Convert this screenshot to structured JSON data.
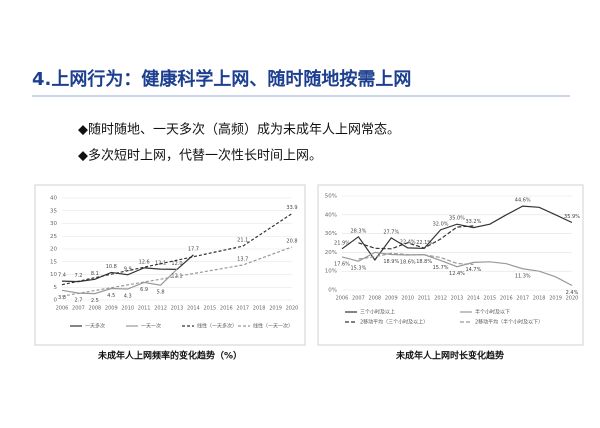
{
  "slide": {
    "title": "4.上网行为：健康科学上网、随时随地按需上网",
    "bullets": [
      "◆随时随地、一天多次（高频）成为未成年人上网常态。",
      "◆多次短时上网，代替一次性长时间上网。"
    ]
  },
  "chart_data": [
    {
      "type": "line",
      "caption": "未成年人上网频率的变化趋势（%）",
      "categories": [
        "2006",
        "2007",
        "2008",
        "2009",
        "2010",
        "2011",
        "2012",
        "2013",
        "2014",
        "2015",
        "2016",
        "2017",
        "2018",
        "2019",
        "2020"
      ],
      "ylim": [
        0,
        40
      ],
      "yticks": [
        0,
        5,
        10,
        15,
        20,
        25,
        30,
        35,
        40
      ],
      "grid": true,
      "series": [
        {
          "name": "一天多次",
          "color": "#333333",
          "dash": "none",
          "values": [
            7.4,
            7.2,
            8.1,
            10.8,
            9.9,
            12.6,
            12.1,
            12.0,
            17.7,
            null,
            null,
            null,
            null,
            null,
            null
          ],
          "value_labels": [
            "7.4",
            "7.2",
            "8.1",
            "10.8",
            "9.9",
            "12.6",
            "12.1",
            "12.0",
            "17.7",
            null,
            null,
            null,
            null,
            null,
            null
          ]
        },
        {
          "name": "一天一次",
          "color": "#999999",
          "dash": "none",
          "values": [
            3.8,
            2.7,
            2.5,
            4.5,
            4.3,
            6.9,
            5.8,
            12.1,
            null,
            null,
            null,
            null,
            null,
            null,
            null
          ],
          "value_labels": [
            "3.8",
            "2.7",
            "2.5",
            "4.5",
            "4.3",
            "6.9",
            "5.8",
            "12.1",
            null,
            null,
            null,
            null,
            null,
            null,
            null
          ]
        },
        {
          "name": "线性（一天多次）",
          "color": "#333333",
          "dash": "3,2",
          "values": [
            6.0,
            null,
            null,
            null,
            null,
            null,
            null,
            null,
            null,
            null,
            null,
            21.1,
            null,
            null,
            33.9
          ],
          "value_labels": [
            null,
            null,
            null,
            null,
            null,
            null,
            null,
            null,
            null,
            null,
            null,
            "21.1",
            null,
            null,
            "33.9"
          ]
        },
        {
          "name": "线性（一天一次）",
          "color": "#999999",
          "dash": "3,2",
          "values": [
            1.5,
            null,
            null,
            null,
            null,
            null,
            null,
            null,
            null,
            null,
            null,
            13.7,
            null,
            null,
            20.8
          ],
          "value_labels": [
            null,
            null,
            null,
            null,
            null,
            null,
            null,
            null,
            null,
            null,
            null,
            "13.7",
            null,
            null,
            "20.8"
          ]
        }
      ]
    },
    {
      "type": "line",
      "caption": "未成年人上网时长变化趋势",
      "categories": [
        "2006",
        "2007",
        "2008",
        "2009",
        "2010",
        "2011",
        "2012",
        "2013",
        "2014",
        "2015",
        "2016",
        "2017",
        "2018",
        "2019",
        "2020"
      ],
      "ylim": [
        0,
        50
      ],
      "yticks": [
        {
          "value": 0,
          "label": "0%"
        },
        {
          "value": 10,
          "label": "10%"
        },
        {
          "value": 20,
          "label": "20%"
        },
        {
          "value": 30,
          "label": "30%"
        },
        {
          "value": 40,
          "label": "40%"
        },
        {
          "value": 50,
          "label": "50%"
        }
      ],
      "grid": true,
      "series": [
        {
          "name": "三个小时及以上",
          "color": "#333333",
          "dash": "none",
          "values": [
            21.9,
            28.3,
            16.0,
            27.7,
            22.4,
            22.1,
            32.0,
            35.0,
            33.2,
            35.0,
            40.0,
            44.6,
            44.0,
            40.0,
            35.9
          ],
          "value_labels": [
            "21.9%",
            "28.3%",
            null,
            "27.7%",
            "22.4%",
            "22.1%",
            "32.0%",
            "35.0%",
            "33.2%",
            null,
            null,
            "44.6%",
            null,
            null,
            "35.9%"
          ]
        },
        {
          "name": "半个小时及以下",
          "color": "#999999",
          "dash": "none",
          "values": [
            17.6,
            15.3,
            20.0,
            18.9,
            18.6,
            18.8,
            15.7,
            12.4,
            14.7,
            15.0,
            14.0,
            11.3,
            10.0,
            7.0,
            2.4
          ],
          "value_labels": [
            "17.6%",
            "15.3%",
            null,
            "18.9%",
            "18.6%",
            "18.8%",
            "15.7%",
            "12.4%",
            "14.7%",
            null,
            null,
            "11.3%",
            null,
            null,
            "2.4%"
          ]
        },
        {
          "name": "2移动平均（三个小时及以上）",
          "color": "#333333",
          "dash": "4,2",
          "values": [
            null,
            25.1,
            22.2,
            21.9,
            25.1,
            22.3,
            27.1,
            33.5,
            34.1,
            null,
            null,
            null,
            null,
            null,
            null
          ]
        },
        {
          "name": "2移动平均（半个小时及以下）",
          "color": "#999999",
          "dash": "4,2",
          "values": [
            null,
            16.5,
            17.7,
            19.5,
            18.8,
            18.7,
            17.3,
            14.1,
            13.6,
            null,
            null,
            null,
            null,
            null,
            null
          ]
        }
      ]
    }
  ]
}
